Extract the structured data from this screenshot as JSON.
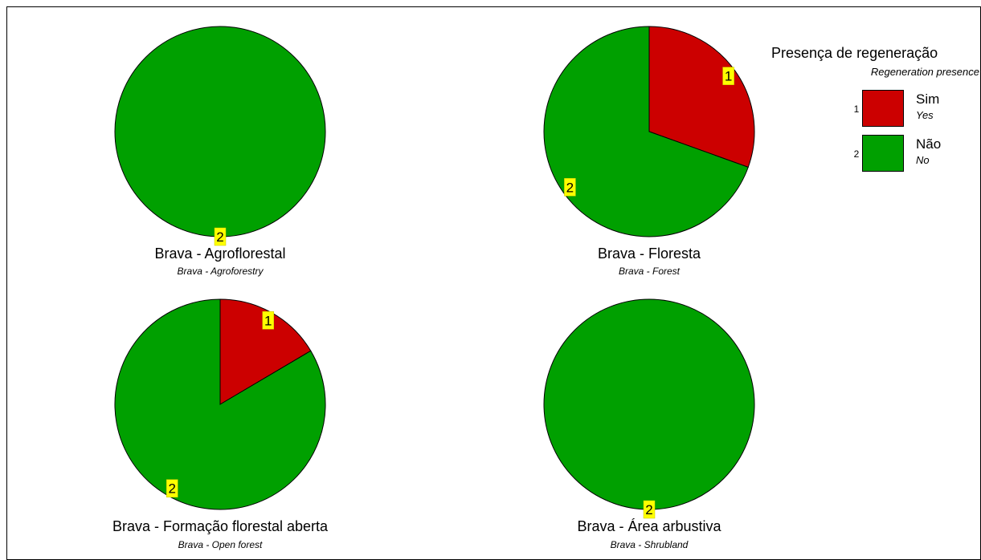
{
  "chart_data": {
    "type": "pie",
    "legend": {
      "title": "Presença de regeneração",
      "subtitle": "Regeneration presence",
      "placement": "top-right",
      "items": [
        {
          "code": "1",
          "label": "Sim",
          "label_en": "Yes",
          "color": "#cc0000"
        },
        {
          "code": "2",
          "label": "Não",
          "label_en": "No",
          "color": "#00a000"
        }
      ]
    },
    "charts": [
      {
        "title": "Brava - Agroflorestal",
        "subtitle": "Brava - Agroforestry",
        "slices": [
          {
            "code": "2",
            "value": 100
          }
        ]
      },
      {
        "title": "Brava - Floresta",
        "subtitle": "Brava - Forest",
        "slices": [
          {
            "code": "1",
            "value": 30.5
          },
          {
            "code": "2",
            "value": 69.5
          }
        ]
      },
      {
        "title": "Brava - Formação florestal aberta",
        "subtitle": "Brava - Open forest",
        "slices": [
          {
            "code": "1",
            "value": 16.5
          },
          {
            "code": "2",
            "value": 83.5
          }
        ]
      },
      {
        "title": "Brava - Área arbustiva",
        "subtitle": "Brava - Shrubland",
        "slices": [
          {
            "code": "2",
            "value": 100
          }
        ]
      }
    ]
  }
}
